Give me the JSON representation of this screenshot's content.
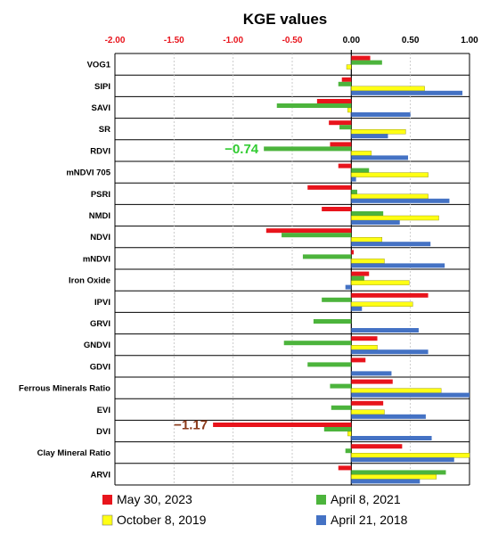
{
  "chart_data": {
    "type": "bar",
    "orientation": "horizontal",
    "title": "KGE values",
    "xlim": [
      -2.0,
      1.0
    ],
    "xticks": [
      "-2.00",
      "-1.50",
      "-1.00",
      "-0.50",
      "0.00",
      "0.50",
      "1.00"
    ],
    "xtick_values": [
      -2.0,
      -1.5,
      -1.0,
      -0.5,
      0.0,
      0.5,
      1.0
    ],
    "legend_position": "bottom",
    "categories": [
      "VOG1",
      "SIPI",
      "SAVI",
      "SR",
      "RDVI",
      "mNDVI 705",
      "PSRI",
      "NMDI",
      "NDVI",
      "mNDVI",
      "Iron Oxide",
      "IPVI",
      "GRVI",
      "GNDVI",
      "GDVI",
      "Ferrous Minerals Ratio",
      "EVI",
      "DVI",
      "Clay Mineral Ratio",
      "ARVI"
    ],
    "series": [
      {
        "name": "May 30, 2023",
        "color": "#e8141c",
        "values": [
          0.16,
          -0.08,
          -0.29,
          -0.19,
          -0.18,
          -0.11,
          -0.37,
          -0.25,
          -0.72,
          0.02,
          0.15,
          0.65,
          0.0,
          0.22,
          0.12,
          0.35,
          0.27,
          -1.17,
          0.43,
          -0.11
        ]
      },
      {
        "name": "April 8, 2021",
        "color": "#4cb43c",
        "values": [
          0.26,
          -0.11,
          -0.63,
          -0.1,
          -0.74,
          0.15,
          0.05,
          0.27,
          -0.59,
          -0.41,
          0.11,
          -0.25,
          -0.32,
          -0.57,
          -0.37,
          -0.18,
          -0.17,
          -0.23,
          -0.05,
          0.8
        ]
      },
      {
        "name": "October 8, 2019",
        "color": "#ffff14",
        "values": [
          -0.04,
          0.62,
          -0.03,
          0.46,
          0.17,
          0.65,
          0.65,
          0.74,
          0.26,
          0.28,
          0.49,
          0.52,
          0.0,
          0.22,
          0.0,
          0.76,
          0.28,
          -0.03,
          1.0,
          0.72
        ]
      },
      {
        "name": "April 21, 2018",
        "color": "#4472c4",
        "values": [
          0.0,
          0.94,
          0.5,
          0.31,
          0.48,
          0.04,
          0.83,
          0.41,
          0.67,
          0.79,
          -0.05,
          0.09,
          0.57,
          0.65,
          0.34,
          1.0,
          0.63,
          0.68,
          0.87,
          0.58
        ]
      }
    ],
    "annotations": [
      {
        "text": "−0.74",
        "category": "RDVI",
        "series": "April 8, 2021",
        "color": "#33cc33"
      },
      {
        "text": "−1.17",
        "category": "DVI",
        "series": "May 30, 2023",
        "color": "#8b3a1a"
      }
    ]
  }
}
